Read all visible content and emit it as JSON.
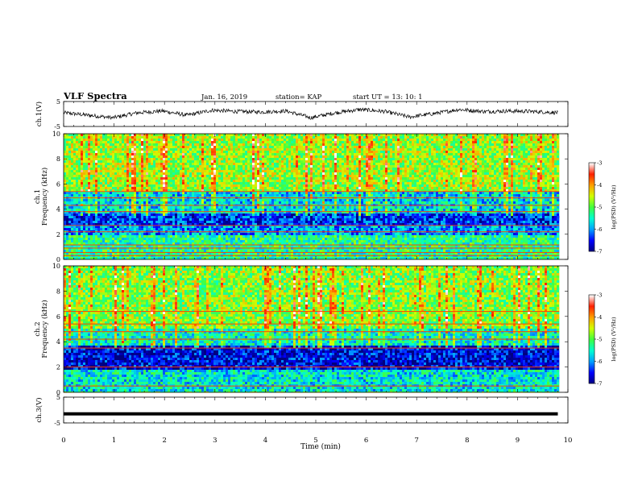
{
  "header": {
    "title": "VLF Spectra",
    "date": "Jan. 16, 2019",
    "station": "station= KAP",
    "start": "start UT =   13: 10: 1"
  },
  "colorbar": {
    "ticks": [
      "-3",
      "-4",
      "-5",
      "-6",
      "-7"
    ],
    "label": "log(PSD) (V²/Hz)",
    "colors": [
      "#000080",
      "#0000ff",
      "#00a0ff",
      "#00ffd0",
      "#40ff40",
      "#d0ff00",
      "#ffa000",
      "#ff2000",
      "#ffffff"
    ]
  },
  "chart_data": [
    {
      "type": "line",
      "ylabel": "ch.1(V)",
      "yticks": [
        "5",
        "-5"
      ],
      "ylim": [
        -5,
        5
      ],
      "xlim": [
        0,
        10
      ],
      "note": "noisy waveform around 0 V, approx ±2.5 V",
      "series": [
        {
          "values_approx": [
            0.5,
            -0.5,
            -1.5,
            0.5,
            1.2,
            -0.5,
            1.5,
            1.0,
            0.8,
            1.2,
            -1.5,
            0.5,
            1.8,
            1.0,
            -1.2,
            0.2,
            1.8,
            1.0,
            1.2,
            1.0,
            0.5
          ]
        }
      ]
    },
    {
      "type": "heatmap",
      "ylabel": "ch.1",
      "ylabel2": "Frequency (kHz)",
      "yticks": [
        "0",
        "2",
        "4",
        "6",
        "8",
        "10"
      ],
      "ylim": [
        0,
        10
      ],
      "xlim": [
        0,
        9.83
      ],
      "zlim": [
        -7,
        -3
      ],
      "bands_khz": [
        {
          "from": 0,
          "to": 2,
          "level": -5.3
        },
        {
          "from": 2,
          "to": 2.6,
          "level": -6.0
        },
        {
          "from": 2.6,
          "to": 3.6,
          "level": -6.4
        },
        {
          "from": 3.6,
          "to": 5.4,
          "level": -5.7
        },
        {
          "from": 5.4,
          "to": 10,
          "level": -4.7
        }
      ],
      "lines_khz": [
        0.3,
        0.55,
        0.9,
        1.15,
        2.2,
        2.7,
        3.8,
        4.3,
        4.9,
        5.4
      ]
    },
    {
      "type": "heatmap",
      "ylabel": "ch.2",
      "ylabel2": "Frequency (kHz)",
      "yticks": [
        "0",
        "2",
        "4",
        "6",
        "8",
        "10"
      ],
      "ylim": [
        0,
        10
      ],
      "xlim": [
        0,
        9.83
      ],
      "zlim": [
        -7,
        -3
      ],
      "bands_khz": [
        {
          "from": 0,
          "to": 1.8,
          "level": -5.6
        },
        {
          "from": 1.8,
          "to": 3.6,
          "level": -6.6
        },
        {
          "from": 3.6,
          "to": 5.0,
          "level": -5.5
        },
        {
          "from": 5.0,
          "to": 10,
          "level": -4.8
        }
      ],
      "lines_khz": [
        0.5,
        2.0,
        3.5,
        4.2,
        4.8,
        5.4,
        6.4
      ]
    },
    {
      "type": "line",
      "ylabel": "ch.3(V)",
      "yticks": [
        "5",
        "-5"
      ],
      "ylim": [
        -5,
        5
      ],
      "xlim": [
        0,
        10
      ],
      "series": [
        {
          "values_approx": [
            -1.5,
            -1.5
          ]
        }
      ]
    }
  ],
  "xaxis": {
    "label": "Time (min)",
    "ticks": [
      "0",
      "1",
      "2",
      "3",
      "4",
      "5",
      "6",
      "7",
      "8",
      "9",
      "10"
    ],
    "xlim": [
      0,
      10
    ]
  }
}
